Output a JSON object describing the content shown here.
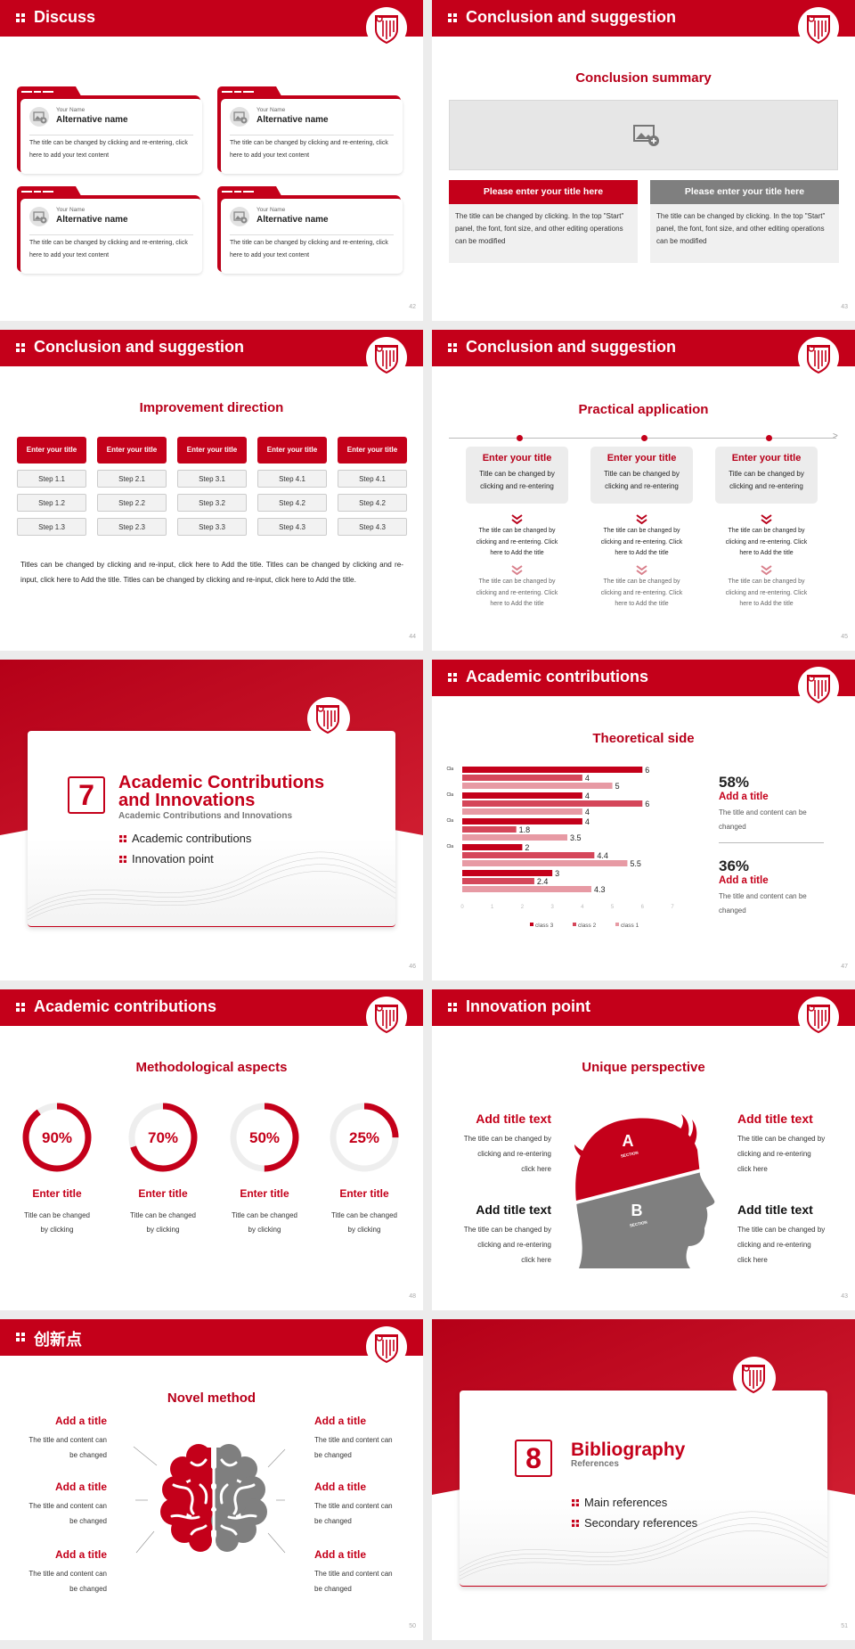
{
  "colors": {
    "brand_red": "#c4001a",
    "gray_block": "#7f7f7f",
    "light_gray": "#eeeeee",
    "class3": "#c4001a",
    "class2": "#d5475a",
    "class1": "#e79aa4"
  },
  "slides": [
    {
      "page": "42",
      "header": "Discuss",
      "cards": [
        {
          "label": "Your Name",
          "name": "Alternative name",
          "text": "The title can be changed by clicking and re-entering, click here to add your text content"
        },
        {
          "label": "Your Name",
          "name": "Alternative name",
          "text": "The title can be changed by clicking and re-entering, click here to add your text content"
        },
        {
          "label": "Your Name",
          "name": "Alternative name",
          "text": "The title can be changed by clicking and re-entering, click here to add your text content"
        },
        {
          "label": "Your Name",
          "name": "Alternative name",
          "text": "The title can be changed by clicking and re-entering, click here to add your text content"
        }
      ]
    },
    {
      "page": "43",
      "header": "Conclusion and suggestion",
      "subtitle": "Conclusion summary",
      "panels": [
        {
          "title": "Please enter your title here",
          "text": "The title can be changed by clicking. In the top \"Start\" panel, the font, font size, and other editing operations can be modified"
        },
        {
          "title": "Please enter your title here",
          "text": "The title can be changed by clicking. In the top \"Start\" panel, the font, font size, and other editing operations can be modified"
        }
      ]
    },
    {
      "page": "44",
      "header": "Conclusion and suggestion",
      "subtitle": "Improvement direction",
      "columns": [
        {
          "title": "Enter your title",
          "steps": [
            "Step 1.1",
            "Step 1.2",
            "Step 1.3"
          ]
        },
        {
          "title": "Enter your title",
          "steps": [
            "Step 2.1",
            "Step 2.2",
            "Step 2.3"
          ]
        },
        {
          "title": "Enter your title",
          "steps": [
            "Step 3.1",
            "Step 3.2",
            "Step 3.3"
          ]
        },
        {
          "title": "Enter your title",
          "steps": [
            "Step 4.1",
            "Step 4.2",
            "Step 4.3"
          ]
        },
        {
          "title": "Enter your title",
          "steps": [
            "Step 4.1",
            "Step 4.2",
            "Step 4.3"
          ]
        }
      ],
      "paragraph": "Titles can be changed by clicking and re-input, click here to Add the title. Titles can be changed by clicking and re-input, click here to Add the title. Titles can be changed by clicking and re-input, click here to Add the title."
    },
    {
      "page": "45",
      "header": "Conclusion and suggestion",
      "subtitle": "Practical application",
      "columns": [
        {
          "title": "Enter your title",
          "text": "Title can be changed by clicking and re-entering",
          "items": [
            "The title can be changed by clicking and re-entering. Click here to Add the title",
            "The title can be changed by clicking and re-entering. Click here to Add the title"
          ]
        },
        {
          "title": "Enter your title",
          "text": "Title can be changed by clicking and re-entering",
          "items": [
            "The title can be changed by clicking and re-entering. Click here to Add the title",
            "The title can be changed by clicking and re-entering. Click here to Add the title"
          ]
        },
        {
          "title": "Enter your title",
          "text": "Title can be changed by clicking and re-entering",
          "items": [
            "The title can be changed by clicking and re-entering. Click here to Add the title",
            "The title can be changed by clicking and re-entering. Click here to Add the title"
          ]
        }
      ]
    },
    {
      "page": "46",
      "number": "7",
      "title_lines": [
        "Academic Contributions",
        "and Innovations"
      ],
      "subtitle": "Academic Contributions and Innovations",
      "items": [
        "Academic contributions",
        "Innovation point"
      ]
    },
    {
      "page": "47",
      "header": "Academic contributions",
      "subtitle": "Theoretical side",
      "stats": [
        {
          "value": "58%",
          "title": "Add a title",
          "text": "The title and content can be changed"
        },
        {
          "value": "36%",
          "title": "Add a title",
          "text": "The title and content can be changed"
        }
      ]
    },
    {
      "page": "48",
      "header": "Academic contributions",
      "subtitle": "Methodological aspects",
      "rings": [
        {
          "percent": 90,
          "label": "90%",
          "title": "Enter title",
          "text": "Title can be changed by clicking"
        },
        {
          "percent": 70,
          "label": "70%",
          "title": "Enter title",
          "text": "Title can be changed by clicking"
        },
        {
          "percent": 50,
          "label": "50%",
          "title": "Enter title",
          "text": "Title can be changed by clicking"
        },
        {
          "percent": 25,
          "label": "25%",
          "title": "Enter title",
          "text": "Title can be changed by clicking"
        }
      ]
    },
    {
      "page": "43",
      "header": "Innovation point",
      "subtitle": "Unique perspective",
      "head": {
        "a": "A",
        "b": "B",
        "section": "SECTION"
      },
      "blocks": [
        {
          "title": "Add title text",
          "text": "The title can be changed by clicking and re-entering click here"
        },
        {
          "title": "Add title text",
          "text": "The title can be changed by clicking and re-entering click here"
        },
        {
          "title": "Add title text",
          "text": "The title can be changed by clicking and re-entering click here"
        },
        {
          "title": "Add title text",
          "text": "The title can be changed by clicking and re-entering click here"
        }
      ]
    },
    {
      "page": "50",
      "header": "创新点",
      "subtitle": "Novel method",
      "blocks": [
        {
          "title": "Add a title",
          "text": "The title and content can be changed"
        },
        {
          "title": "Add a title",
          "text": "The title and content can be changed"
        },
        {
          "title": "Add a title",
          "text": "The title and content can be changed"
        },
        {
          "title": "Add a title",
          "text": "The title and content can be changed"
        },
        {
          "title": "Add a title",
          "text": "The title and content can be changed"
        },
        {
          "title": "Add a title",
          "text": "The title and content can be changed"
        }
      ]
    },
    {
      "page": "51",
      "number": "8",
      "title_lines": [
        "Bibliography"
      ],
      "subtitle": "References",
      "items": [
        "Main references",
        "Secondary references"
      ]
    }
  ],
  "chart_data": {
    "type": "bar",
    "orientation": "horizontal",
    "categories": [
      "Clas...",
      "Clas...",
      "Clas...",
      "Clas...",
      ""
    ],
    "series": [
      {
        "name": "class 3",
        "values": [
          6,
          4,
          4,
          2,
          3
        ]
      },
      {
        "name": "class 2",
        "values": [
          4,
          6,
          1.8,
          4.4,
          2.4
        ]
      },
      {
        "name": "class 1",
        "values": [
          5,
          4,
          3.5,
          5.5,
          4.3
        ]
      }
    ],
    "xlim": [
      0,
      7
    ],
    "xticks": [
      "0",
      "1",
      "2",
      "3",
      "4",
      "5",
      "6",
      "7"
    ],
    "data_labels": true,
    "grid": false,
    "legend": "bottom"
  }
}
